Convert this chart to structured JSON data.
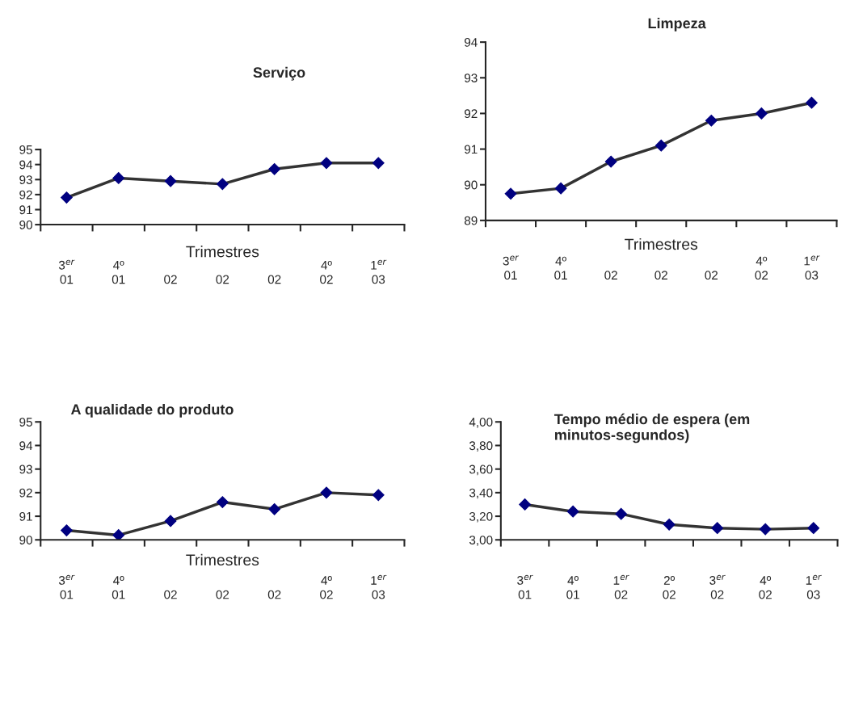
{
  "chart_data": [
    {
      "type": "line",
      "title": "Serviço",
      "xlabel": "Trimestres",
      "categories": [
        "3$^{er}$\n01",
        "4º\n01",
        "\n02",
        "\n02",
        "\n02",
        "4º\n02",
        "1$^{er}$\n03"
      ],
      "series": [
        {
          "color": "#000080",
          "values": [
            91.8,
            93.1,
            92.9,
            92.7,
            93.7,
            94.1,
            94.1
          ]
        }
      ],
      "ylim": [
        90,
        95
      ],
      "yticks": [
        90,
        91,
        92,
        93,
        94,
        95
      ],
      "marker": "diamond",
      "line_style": "solid",
      "grid": false,
      "legend": false
    },
    {
      "type": "line",
      "title": "Limpeza",
      "xlabel": "Trimestres",
      "categories": [
        "3$^{er}$\n01",
        "4º\n01",
        "\n02",
        "\n02",
        "\n02",
        "4º\n02",
        "1$^{er}$\n03"
      ],
      "series": [
        {
          "color": "#000080",
          "values": [
            89.75,
            89.9,
            90.65,
            91.1,
            91.8,
            92.0,
            92.3
          ]
        }
      ],
      "ylim": [
        89,
        94
      ],
      "yticks": [
        89,
        90,
        91,
        92,
        93,
        94
      ],
      "marker": "diamond",
      "line_style": "solid",
      "grid": false,
      "legend": false
    },
    {
      "type": "line",
      "title": "A qualidade do produto",
      "xlabel": "Trimestres",
      "categories": [
        "3$^{er}$\n01",
        "4º\n01",
        "\n02",
        "\n02",
        "\n02",
        "4º\n02",
        "1$^{er}$\n03"
      ],
      "series": [
        {
          "color": "#000080",
          "values": [
            90.4,
            90.2,
            90.8,
            91.6,
            91.3,
            92.0,
            91.9
          ]
        }
      ],
      "ylim": [
        90,
        95
      ],
      "yticks": [
        90,
        91,
        92,
        93,
        94,
        95
      ],
      "marker": "diamond",
      "line_style": "solid",
      "grid": false,
      "legend": false
    },
    {
      "type": "line",
      "title": "Tempo médio de espera (em\nminutos-segundos)",
      "categories": [
        "3$^{er}$\n01",
        "4º\n01",
        "1$^{er}$\n02",
        "2º\n02",
        "3$^{er}$\n02",
        "4º\n02",
        "1$^{er}$\n03"
      ],
      "series": [
        {
          "color": "#000080",
          "values": [
            3.3,
            3.24,
            3.22,
            3.13,
            3.1,
            3.09,
            3.1
          ]
        }
      ],
      "ylim": [
        3.0,
        4.0
      ],
      "yticks": [
        {
          "value": 3.0,
          "label": "3,00"
        },
        {
          "value": 3.2,
          "label": "3,20"
        },
        {
          "value": 3.4,
          "label": "3,40"
        },
        {
          "value": 3.6,
          "label": "3,60"
        },
        {
          "value": 3.8,
          "label": "3,80"
        },
        {
          "value": 4.0,
          "label": "4,00"
        }
      ],
      "marker": "diamond",
      "line_style": "solid",
      "grid": false,
      "legend": false
    }
  ]
}
